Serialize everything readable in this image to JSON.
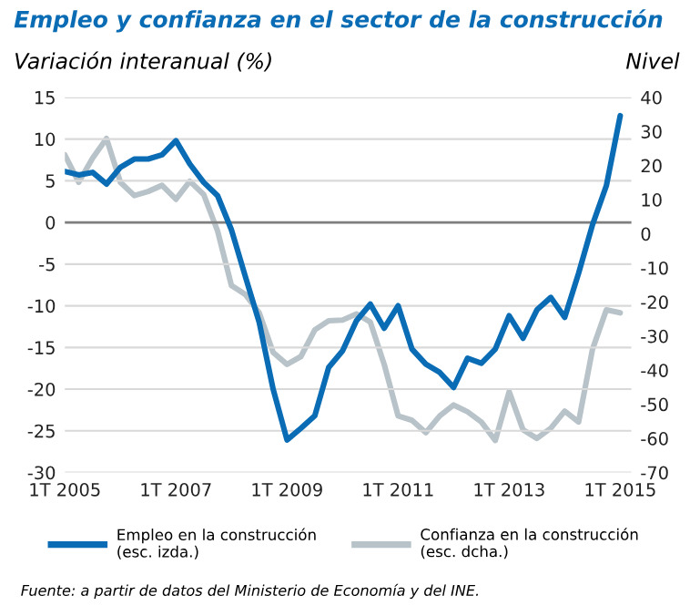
{
  "chart_data": {
    "type": "line",
    "title": "Empleo y confianza en el sector de la construcción",
    "ylabel": "Variación interanual (%)",
    "y2label": "Nivel",
    "categories": [
      "1T 2005",
      null,
      null,
      null,
      null,
      null,
      null,
      null,
      "1T 2007",
      null,
      null,
      null,
      null,
      null,
      null,
      null,
      "1T 2009",
      null,
      null,
      null,
      null,
      null,
      null,
      null,
      "1T 2011",
      null,
      null,
      null,
      null,
      null,
      null,
      null,
      "1T 2013",
      null,
      null,
      null,
      null,
      null,
      null,
      null,
      "1T 2015"
    ],
    "series": [
      {
        "name": "Empleo en la construcción\n(esc. izda.)",
        "color": "#0a6cb4",
        "values": [
          6.1,
          5.7,
          6.0,
          4.6,
          6.6,
          7.6,
          7.6,
          8.1,
          9.8,
          7.0,
          4.8,
          3.2,
          -0.9,
          -6.5,
          -12.0,
          -20.0,
          -26.1,
          -24.7,
          -23.2,
          -17.4,
          -15.4,
          -11.8,
          -9.8,
          -12.7,
          -10.0,
          -15.2,
          -17.0,
          -18.0,
          -19.8,
          -16.3,
          -16.9,
          -15.2,
          -11.2,
          -13.9,
          -10.5,
          -9.0,
          -11.4,
          -6.1,
          -0.3,
          4.4,
          12.8
        ]
      },
      {
        "name": "Confianza en la construcción\n(esc. dcha.)",
        "color": "#b8c3c9",
        "axis": "y2",
        "values": [
          23.1,
          15.1,
          22.2,
          27.9,
          15.1,
          11.2,
          12.4,
          14.2,
          10.1,
          15.4,
          11.5,
          0.8,
          -15.2,
          -17.8,
          -23.2,
          -34.8,
          -38.3,
          -36.0,
          -28.2,
          -25.5,
          -25.3,
          -23.5,
          -25.9,
          -38.3,
          -53.4,
          -54.7,
          -58.3,
          -53.4,
          -50.2,
          -52.2,
          -55.2,
          -60.6,
          -46.3,
          -57.5,
          -60.0,
          -57.0,
          -52.0,
          -55.2,
          -33.9,
          -22.3,
          -23.2
        ]
      }
    ],
    "ylim": [
      -30,
      15
    ],
    "yticks": [
      -30,
      -25,
      -20,
      -15,
      -10,
      -5,
      0,
      5,
      10,
      15
    ],
    "y2lim": [
      -70,
      40
    ],
    "y2ticks": [
      -70,
      -60,
      -50,
      -40,
      -30,
      -20,
      -10,
      0,
      10,
      20,
      30,
      40
    ],
    "ref_lines": [
      {
        "axis": "y",
        "value": 0,
        "color": "#7f7f7f"
      }
    ],
    "grid": "y",
    "legend": "bottom",
    "line_style": "solid",
    "marker": "none",
    "annotations": [
      "Fuente: a partir de datos del Ministerio de Economía y del INE."
    ]
  }
}
